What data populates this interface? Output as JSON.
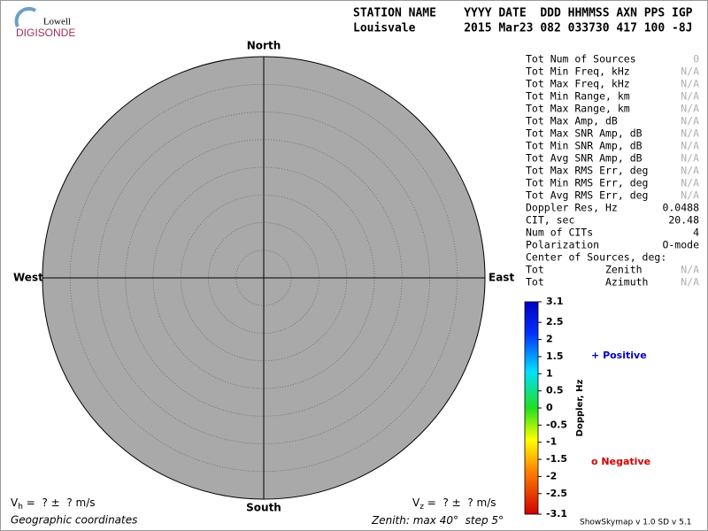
{
  "logo": {
    "top": "Lowell",
    "bottom": "DIGISONDE"
  },
  "header": {
    "line1": "STATION NAME    YYYY DATE  DDD HHMMSS AXN PPS IGP",
    "line2": "Louisvale       2015 Mar23 082 033730 417 100 -8J"
  },
  "stats": {
    "rows": [
      [
        "Tot Num of Sources",
        0,
        "#b0b0b0"
      ],
      [
        "Tot Min Freq, kHz",
        "N/A",
        "#b0b0b0"
      ],
      [
        "Tot Max Freq, kHz",
        "N/A",
        "#b0b0b0"
      ],
      [
        "Tot Min Range, km",
        "N/A",
        "#b0b0b0"
      ],
      [
        "Tot Max Range, km",
        "N/A",
        "#b0b0b0"
      ],
      [
        "Tot Max Amp, dB",
        "N/A",
        "#b0b0b0"
      ],
      [
        "Tot Max SNR Amp, dB",
        "N/A",
        "#b0b0b0"
      ],
      [
        "Tot Min SNR Amp, dB",
        "N/A",
        "#b0b0b0"
      ],
      [
        "Tot Avg SNR Amp, dB",
        "N/A",
        "#b0b0b0"
      ],
      [
        "Tot Max RMS Err, deg",
        "N/A",
        "#b0b0b0"
      ],
      [
        "Tot Min RMS Err, deg",
        "N/A",
        "#b0b0b0"
      ],
      [
        "Tot Avg RMS Err, deg",
        "N/A",
        "#b0b0b0"
      ],
      [
        "Doppler Res, Hz",
        0.0488,
        "#000000"
      ],
      [
        "CIT, sec",
        20.48,
        "#000000"
      ],
      [
        "Num of CITs",
        4,
        "#000000"
      ],
      [
        "Polarization",
        "O-mode",
        "#000000"
      ],
      [
        "Center of Sources, deg:"
      ],
      [
        "Tot          Zenith",
        "N/A",
        "#b0b0b0"
      ],
      [
        "Tot          Azimuth",
        "N/A",
        "#b0b0b0"
      ]
    ]
  },
  "chart_data": {
    "type": "skymap",
    "directions": {
      "north": "North",
      "south": "South",
      "west": "West",
      "east": "East"
    },
    "zenith": {
      "label": "Zenith: max",
      "max": 40,
      "unit": "°",
      "step_label": "step",
      "step": 5
    },
    "coordinates": "Geographic coordinates",
    "plot_color": "#a9a9a9",
    "colorbar": {
      "label": "Doppler, Hz",
      "lim": [
        -3.1,
        3.1
      ],
      "ticks": [
        3.1,
        2.5,
        2,
        1.5,
        1,
        0.5,
        0,
        -0.5,
        -1,
        -1.5,
        -2,
        -2.5,
        -3.1
      ]
    },
    "legend": [
      {
        "marker": "+",
        "name": "Positive",
        "color": "#0000c8"
      },
      {
        "marker": "o",
        "name": "Negative",
        "color": "#d00000"
      }
    ],
    "velocity": [
      {
        "symbol": "V",
        "sub": "h",
        "text": "=  ? ±  ? m/s"
      },
      {
        "symbol": "V",
        "sub": "z",
        "text": "=  ? ±  ? m/s"
      }
    ]
  },
  "footer": {
    "version": "ShowSkymap v 1.0  SD v 5.1"
  }
}
